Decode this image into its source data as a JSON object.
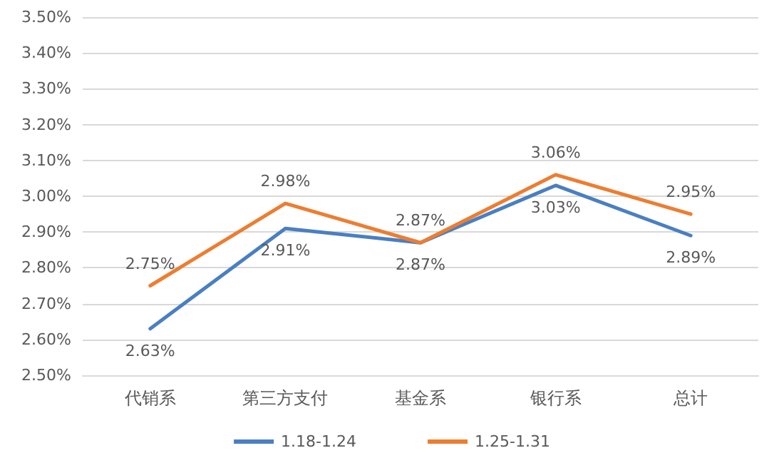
{
  "chart_data": {
    "type": "line",
    "categories": [
      "代销系",
      "第三方支付",
      "基金系",
      "银行系",
      "总计"
    ],
    "series": [
      {
        "name": "1.18-1.24",
        "color": "#4a7fc1",
        "values": [
          2.63,
          2.91,
          2.87,
          3.03,
          2.89
        ],
        "value_labels": [
          "2.63%",
          "2.91%",
          "2.87%",
          "3.03%",
          "2.89%"
        ]
      },
      {
        "name": "1.25-1.31",
        "color": "#ed7d31",
        "values": [
          2.75,
          2.98,
          2.87,
          3.06,
          2.95
        ],
        "value_labels": [
          "2.75%",
          "2.98%",
          "2.87%",
          "3.06%",
          "2.95%"
        ]
      }
    ],
    "ylim": [
      2.5,
      3.5
    ],
    "yticks": [
      {
        "value": 2.5,
        "label": "2.50%"
      },
      {
        "value": 2.6,
        "label": "2.60%"
      },
      {
        "value": 2.7,
        "label": "2.70%"
      },
      {
        "value": 2.8,
        "label": "2.80%"
      },
      {
        "value": 2.9,
        "label": "2.90%"
      },
      {
        "value": 3.0,
        "label": "3.00%"
      },
      {
        "value": 3.1,
        "label": "3.10%"
      },
      {
        "value": 3.2,
        "label": "3.20%"
      },
      {
        "value": 3.3,
        "label": "3.30%"
      },
      {
        "value": 3.4,
        "label": "3.40%"
      },
      {
        "value": 3.5,
        "label": "3.50%"
      }
    ],
    "grid": "y",
    "legend": "bottom",
    "marker": "none",
    "line_style": "solid"
  }
}
